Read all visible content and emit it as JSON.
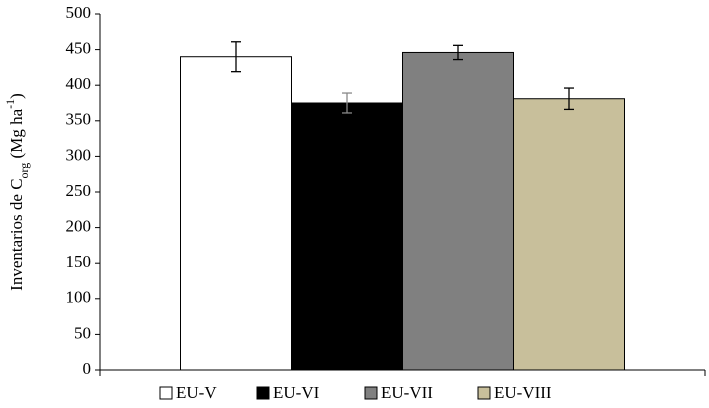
{
  "chart_data": {
    "type": "bar",
    "y_label_parts": [
      "Inventarios de C",
      "org",
      " (Mg ha",
      "-1",
      ")"
    ],
    "categories": [
      null
    ],
    "series": [
      {
        "name": "EU-V",
        "color": "#ffffff",
        "values": [
          440
        ],
        "errors": [
          21
        ]
      },
      {
        "name": "EU-VI",
        "color": "#000000",
        "values": [
          375
        ],
        "errors": [
          14
        ]
      },
      {
        "name": "EU-VII",
        "color": "#808080",
        "values": [
          446
        ],
        "errors": [
          10
        ]
      },
      {
        "name": "EU-VIII",
        "color": "#c8bf9b",
        "values": [
          381
        ],
        "errors": [
          15
        ]
      }
    ],
    "ylim": [
      0,
      500
    ],
    "yticks": [
      0,
      50,
      100,
      150,
      200,
      250,
      300,
      350,
      400,
      450,
      500
    ],
    "legend": "bottom",
    "grid": false
  }
}
